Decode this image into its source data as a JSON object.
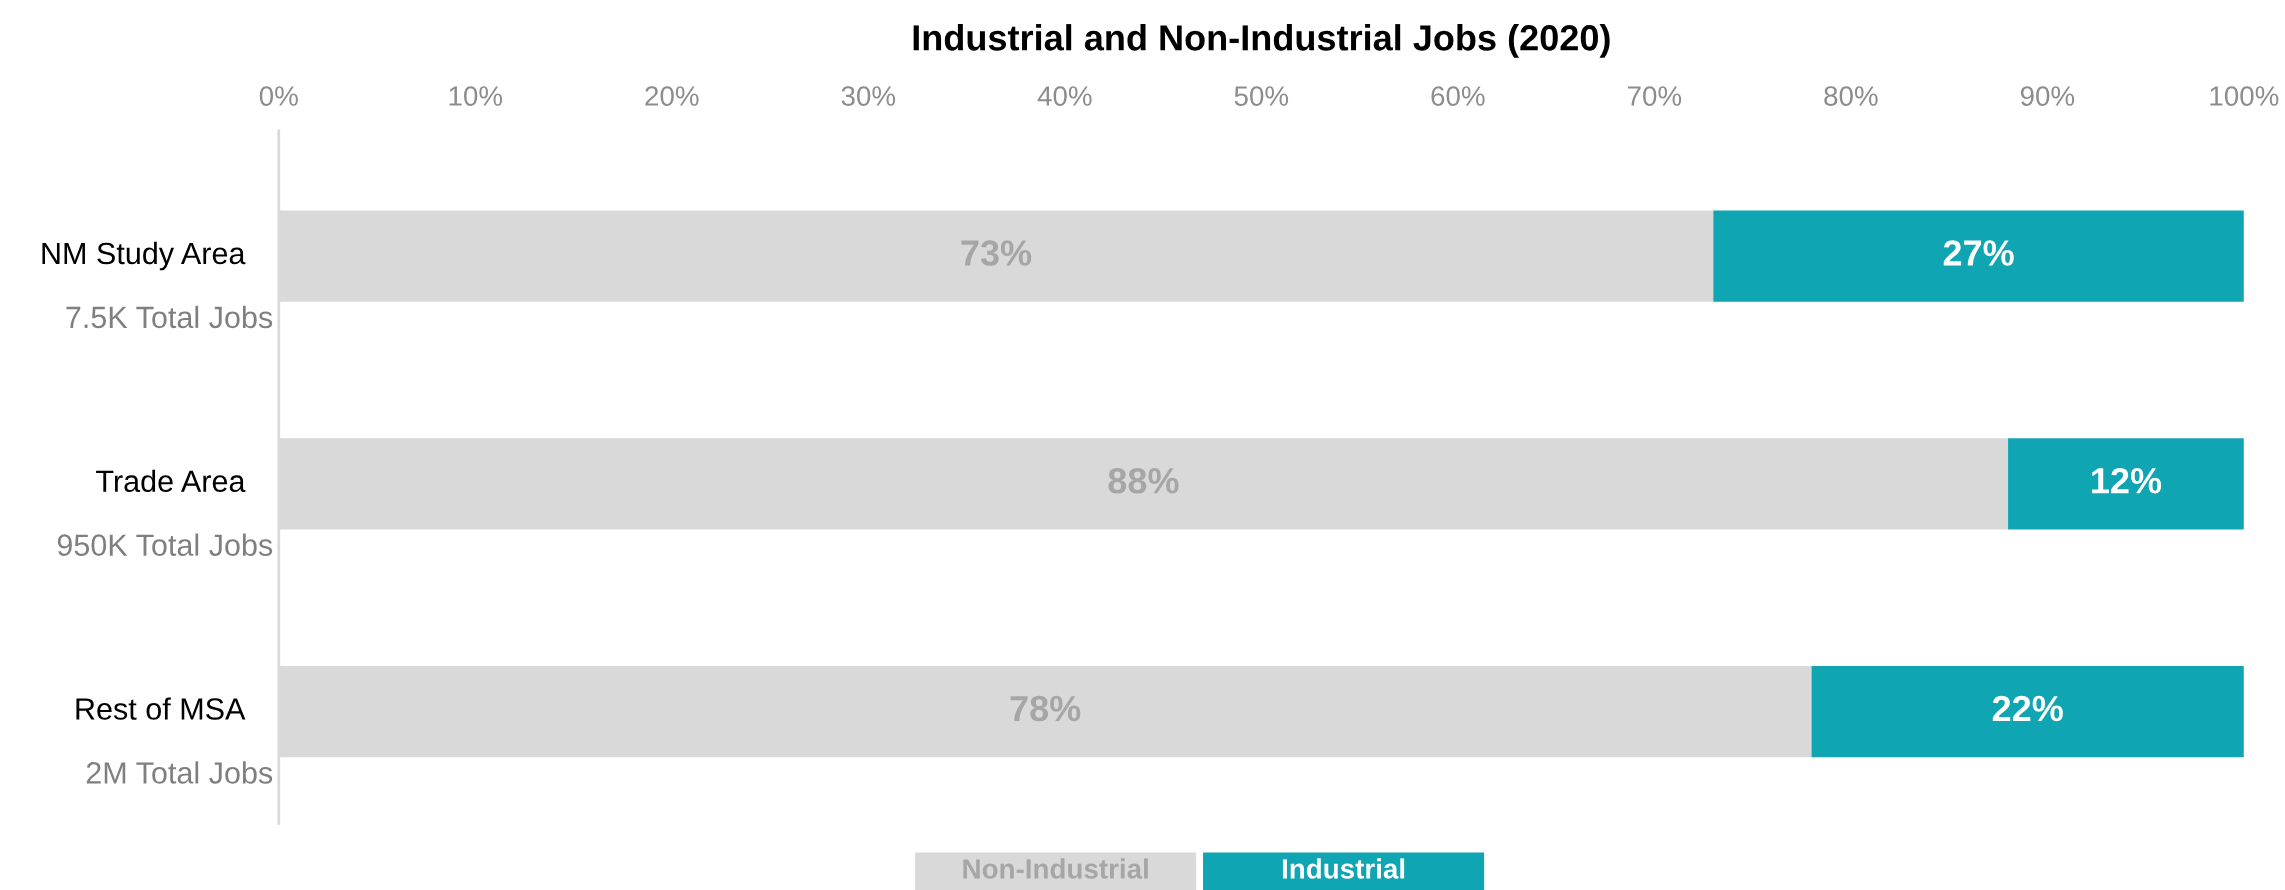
{
  "chart_data": {
    "type": "bar",
    "orientation": "horizontal",
    "stacked": true,
    "title": "Industrial and Non-Industrial Jobs (2020)",
    "categories": [
      "NM Study Area",
      "Trade Area",
      "Rest of MSA"
    ],
    "series": [
      {
        "name": "Non-Industrial",
        "color": "#d9d9d9",
        "values": [
          73,
          88,
          78
        ],
        "value_labels": [
          "73%",
          "88%",
          "78%"
        ]
      },
      {
        "name": "Industrial",
        "color": "#10a5b3",
        "values": [
          27,
          12,
          22
        ],
        "value_labels": [
          "27%",
          "12%",
          "22%"
        ]
      }
    ],
    "xlim": [
      0,
      100
    ],
    "xticks": [
      {
        "value": 0,
        "label": "0%"
      },
      {
        "value": 10,
        "label": "10%"
      },
      {
        "value": 20,
        "label": "20%"
      },
      {
        "value": 30,
        "label": "30%"
      },
      {
        "value": 40,
        "label": "40%"
      },
      {
        "value": 50,
        "label": "50%"
      },
      {
        "value": 60,
        "label": "60%"
      },
      {
        "value": 70,
        "label": "70%"
      },
      {
        "value": 80,
        "label": "80%"
      },
      {
        "value": 90,
        "label": "90%"
      },
      {
        "value": 100,
        "label": "100%"
      }
    ],
    "annotations": [
      "7.5K Total Jobs",
      "950K Total Jobs",
      "2M Total Jobs"
    ],
    "legend": "bottom",
    "grid": false
  }
}
